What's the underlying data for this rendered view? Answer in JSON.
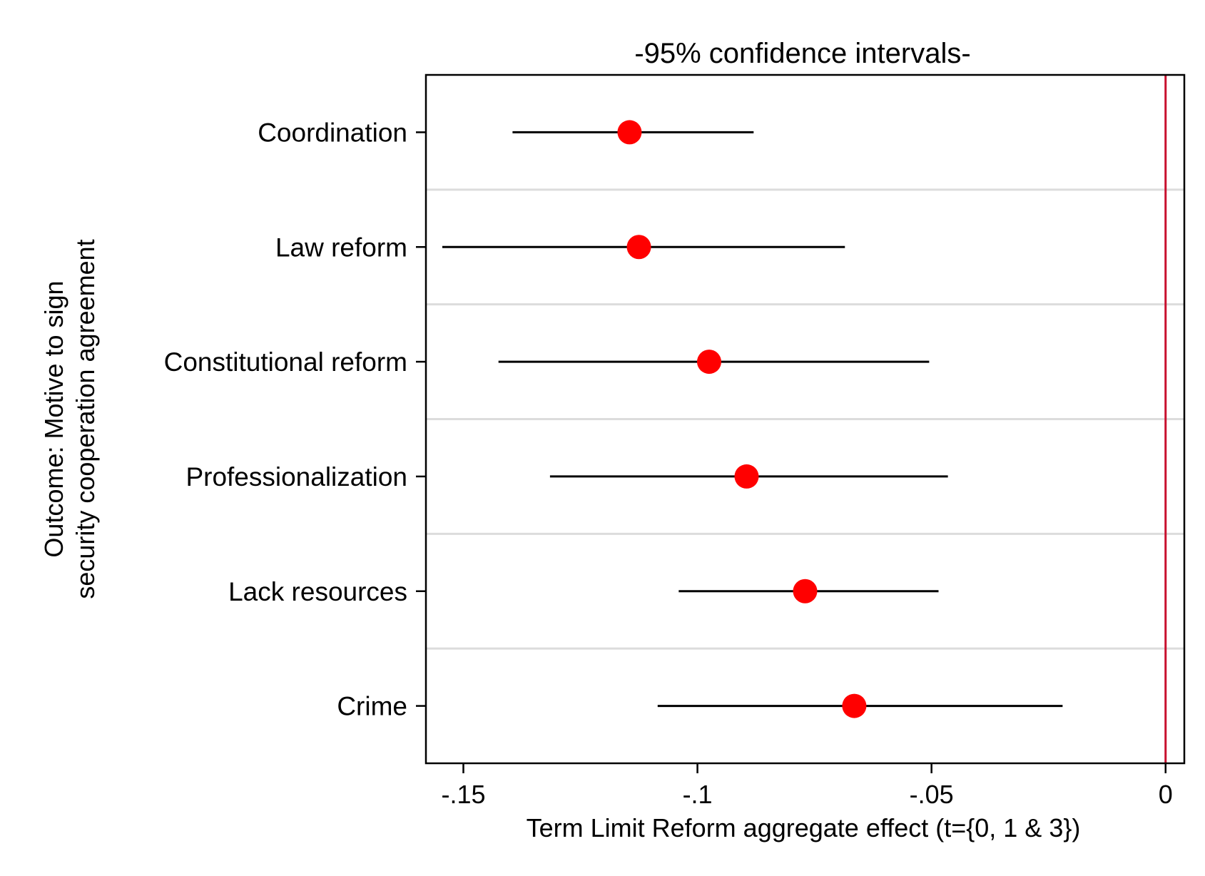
{
  "chart_data": {
    "type": "scatter",
    "subtype": "coefficient-plot-with-95ci",
    "title": "-95% confidence intervals-",
    "xlabel": "Term Limit Reform aggregate effect (t={0, 1 & 3})",
    "ylabel_lines": [
      "Outcome: Motive to sign",
      "security cooperation agreement"
    ],
    "xlim": [
      -0.158,
      0.004
    ],
    "x_ticks": [
      {
        "value": -0.15,
        "label": "-.15"
      },
      {
        "value": -0.1,
        "label": "-.1"
      },
      {
        "value": -0.05,
        "label": "-.05"
      },
      {
        "value": 0,
        "label": "0"
      }
    ],
    "reference_line": {
      "x": 0,
      "color": "#c8102e"
    },
    "grid": "horizontal separators between categories",
    "categories": [
      "Coordination",
      "Law reform",
      "Constitutional reform",
      "Professionalization",
      "Lack resources",
      "Crime"
    ],
    "series": [
      {
        "estimates": [
          -0.1145,
          -0.1125,
          -0.0975,
          -0.0895,
          -0.077,
          -0.0665
        ],
        "ci_low": [
          -0.1395,
          -0.1545,
          -0.1425,
          -0.1315,
          -0.104,
          -0.1085
        ],
        "ci_high": [
          -0.088,
          -0.0685,
          -0.0505,
          -0.0465,
          -0.0485,
          -0.022
        ],
        "marker_color": "#ff0000",
        "ci_color": "#000000"
      }
    ]
  }
}
